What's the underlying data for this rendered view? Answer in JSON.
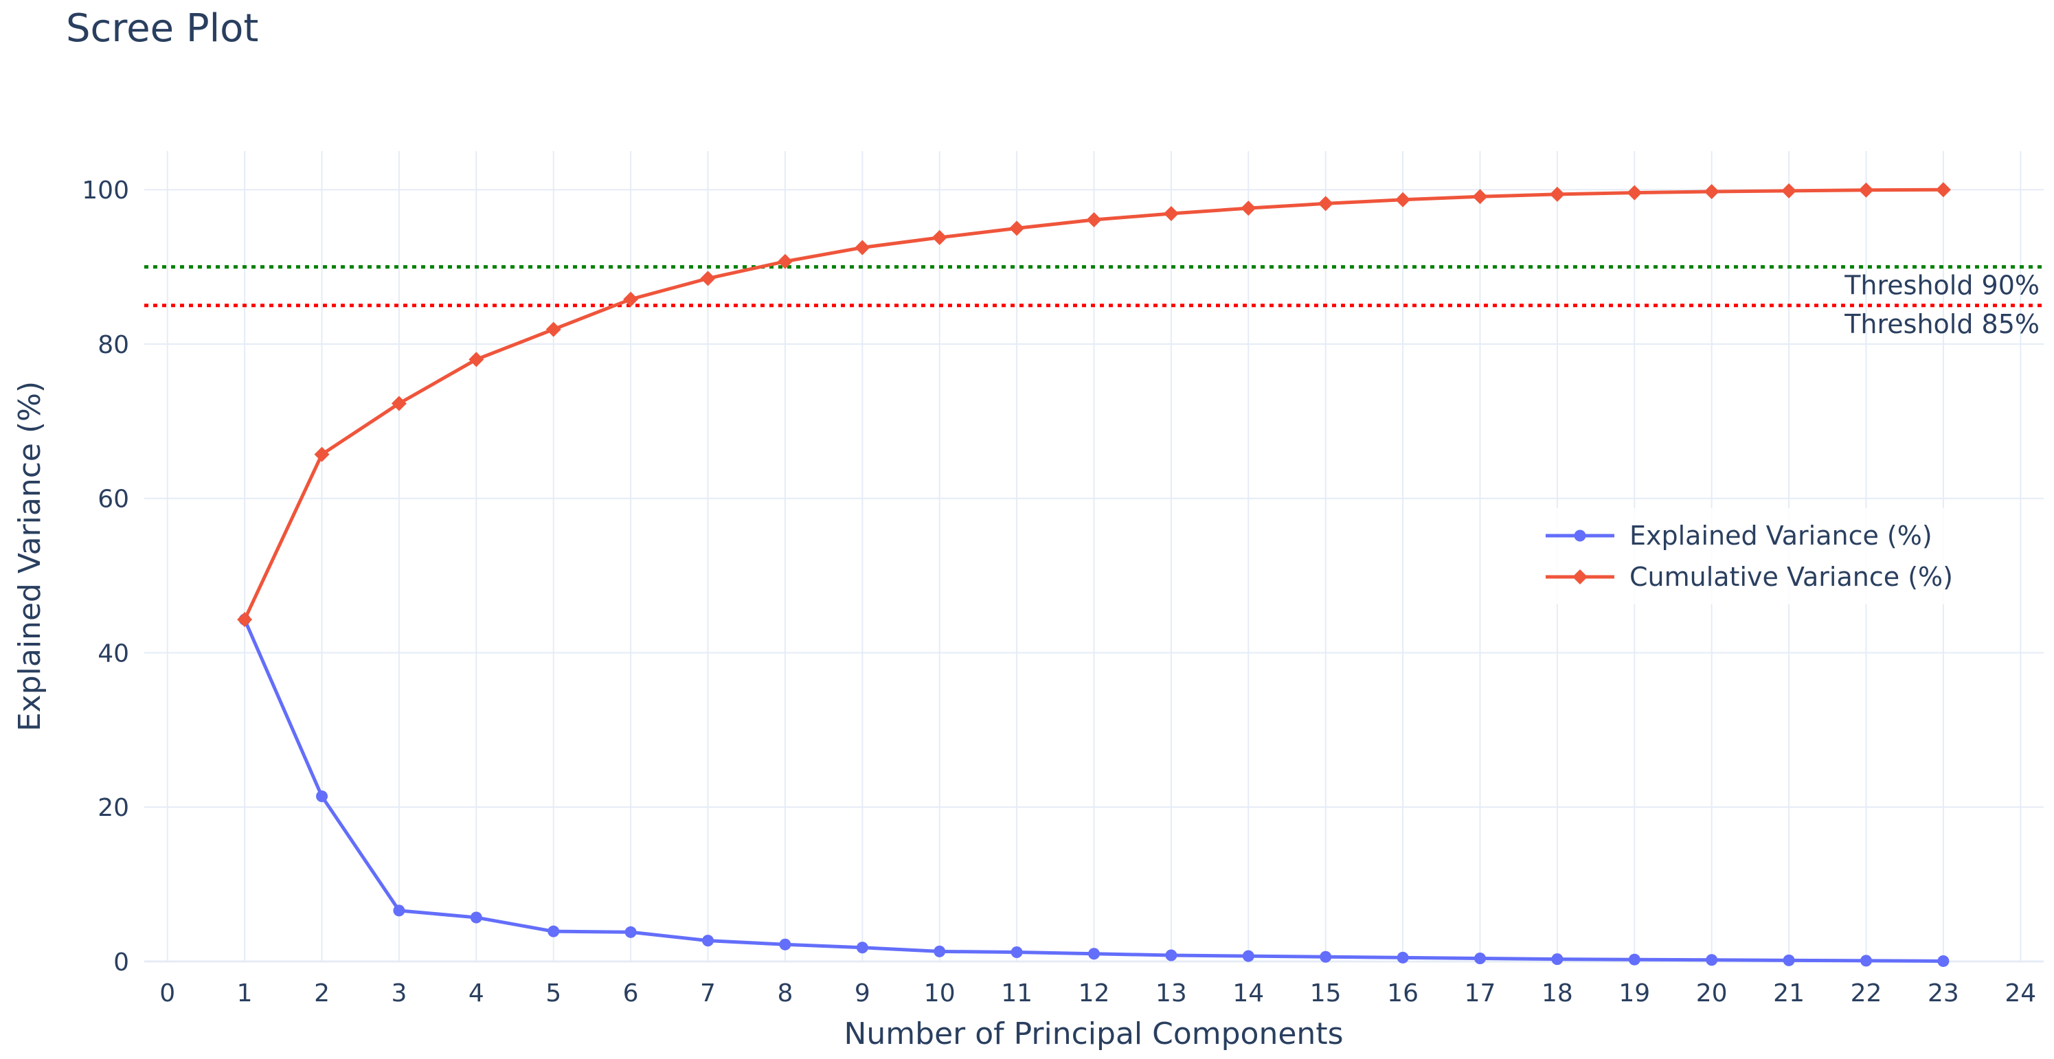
{
  "chart_data": {
    "type": "line",
    "title": "Scree Plot",
    "xlabel": "Number of Principal Components",
    "ylabel": "Explained Variance (%)",
    "xlim": [
      -0.3,
      24.3
    ],
    "ylim": [
      0,
      105
    ],
    "x_ticks": [
      0,
      1,
      2,
      3,
      4,
      5,
      6,
      7,
      8,
      9,
      10,
      11,
      12,
      13,
      14,
      15,
      16,
      17,
      18,
      19,
      20,
      21,
      22,
      23,
      24
    ],
    "y_ticks": [
      0,
      20,
      40,
      60,
      80,
      100
    ],
    "grid": true,
    "legend_position": "right",
    "x": [
      1,
      2,
      3,
      4,
      5,
      6,
      7,
      8,
      9,
      10,
      11,
      12,
      13,
      14,
      15,
      16,
      17,
      18,
      19,
      20,
      21,
      22,
      23
    ],
    "series": [
      {
        "name": "Explained Variance (%)",
        "color": "#636efa",
        "marker": "circle",
        "values": [
          44.3,
          21.4,
          6.6,
          5.7,
          3.9,
          3.8,
          2.7,
          2.2,
          1.8,
          1.3,
          1.2,
          1.0,
          0.8,
          0.7,
          0.6,
          0.5,
          0.4,
          0.3,
          0.25,
          0.2,
          0.15,
          0.1,
          0.05
        ]
      },
      {
        "name": "Cumulative Variance (%)",
        "color": "#ef553b",
        "marker": "diamond",
        "values": [
          44.3,
          65.7,
          72.3,
          78.0,
          81.9,
          85.8,
          88.5,
          90.7,
          92.5,
          93.8,
          95.0,
          96.1,
          96.9,
          97.6,
          98.2,
          98.7,
          99.1,
          99.4,
          99.6,
          99.75,
          99.85,
          99.95,
          100.0
        ]
      }
    ],
    "thresholds": [
      {
        "label": "Threshold 90%",
        "value": 90,
        "color": "#008000"
      },
      {
        "label": "Threshold 85%",
        "value": 85,
        "color": "#ff0000"
      }
    ]
  }
}
